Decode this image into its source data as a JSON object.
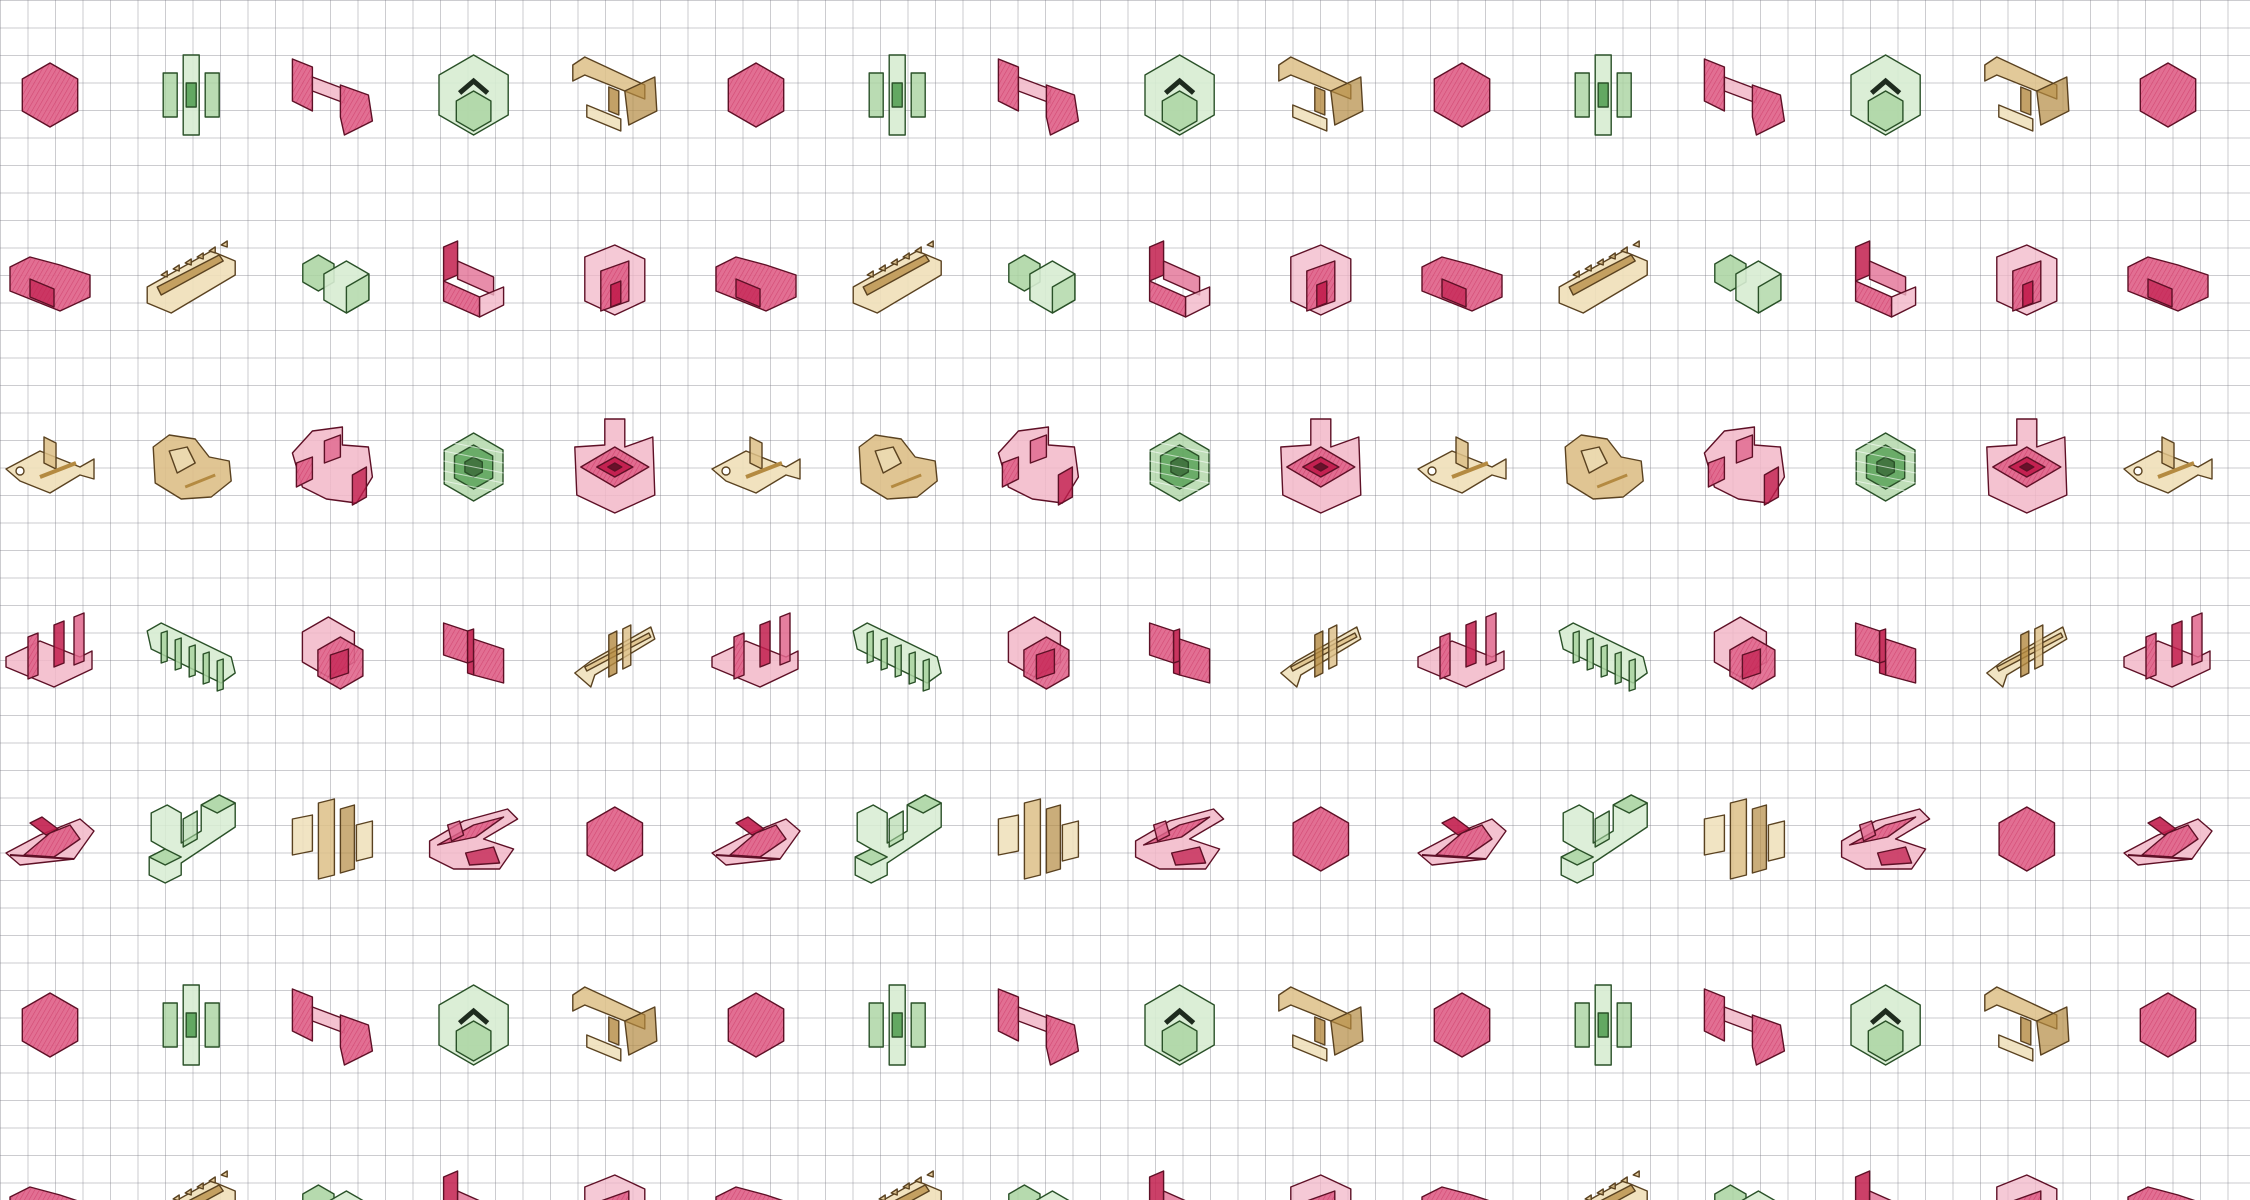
{
  "palette": {
    "crimson": {
      "light": "#f2b7c8",
      "mid": "#e0678d",
      "dark": "#c21e4e",
      "stroke": "#5e1026"
    },
    "green": {
      "light": "#d7ecd2",
      "mid": "#a9d3a0",
      "dark": "#4d9b4d",
      "stroke": "#2a5128"
    },
    "tan": {
      "light": "#efdfb8",
      "mid": "#ddbf87",
      "dark": "#b48a41",
      "stroke": "#5a4220"
    }
  },
  "background": {
    "color": "#ffffff",
    "grid_line_color": "#8a8a94"
  },
  "pattern_rows": [
    [
      {
        "color": "crimson",
        "shape": "hexagon"
      },
      {
        "color": "green",
        "shape": "cactus"
      },
      {
        "color": "crimson",
        "shape": "bridge"
      },
      {
        "color": "green",
        "shape": "chevron-hex"
      },
      {
        "color": "tan",
        "shape": "stairs"
      }
    ],
    [
      {
        "color": "crimson",
        "shape": "wedge"
      },
      {
        "color": "tan",
        "shape": "slab"
      },
      {
        "color": "green",
        "shape": "twin-hex"
      },
      {
        "color": "crimson",
        "shape": "step-block"
      },
      {
        "color": "crimson",
        "shape": "mesh-block"
      }
    ],
    [
      {
        "color": "tan",
        "shape": "fish"
      },
      {
        "color": "tan",
        "shape": "blob"
      },
      {
        "color": "crimson",
        "shape": "cluster"
      },
      {
        "color": "green",
        "shape": "flower"
      },
      {
        "color": "crimson",
        "shape": "radiant"
      }
    ],
    [
      {
        "color": "crimson",
        "shape": "towers"
      },
      {
        "color": "green",
        "shape": "comb"
      },
      {
        "color": "crimson",
        "shape": "nested-hex"
      },
      {
        "color": "crimson",
        "shape": "split-block"
      },
      {
        "color": "tan",
        "shape": "lattice"
      }
    ],
    [
      {
        "color": "crimson",
        "shape": "flat-fan"
      },
      {
        "color": "green",
        "shape": "zigzag"
      },
      {
        "color": "tan",
        "shape": "columns"
      },
      {
        "color": "crimson",
        "shape": "fold"
      },
      {
        "color": "crimson",
        "shape": "hexagon"
      }
    ]
  ]
}
